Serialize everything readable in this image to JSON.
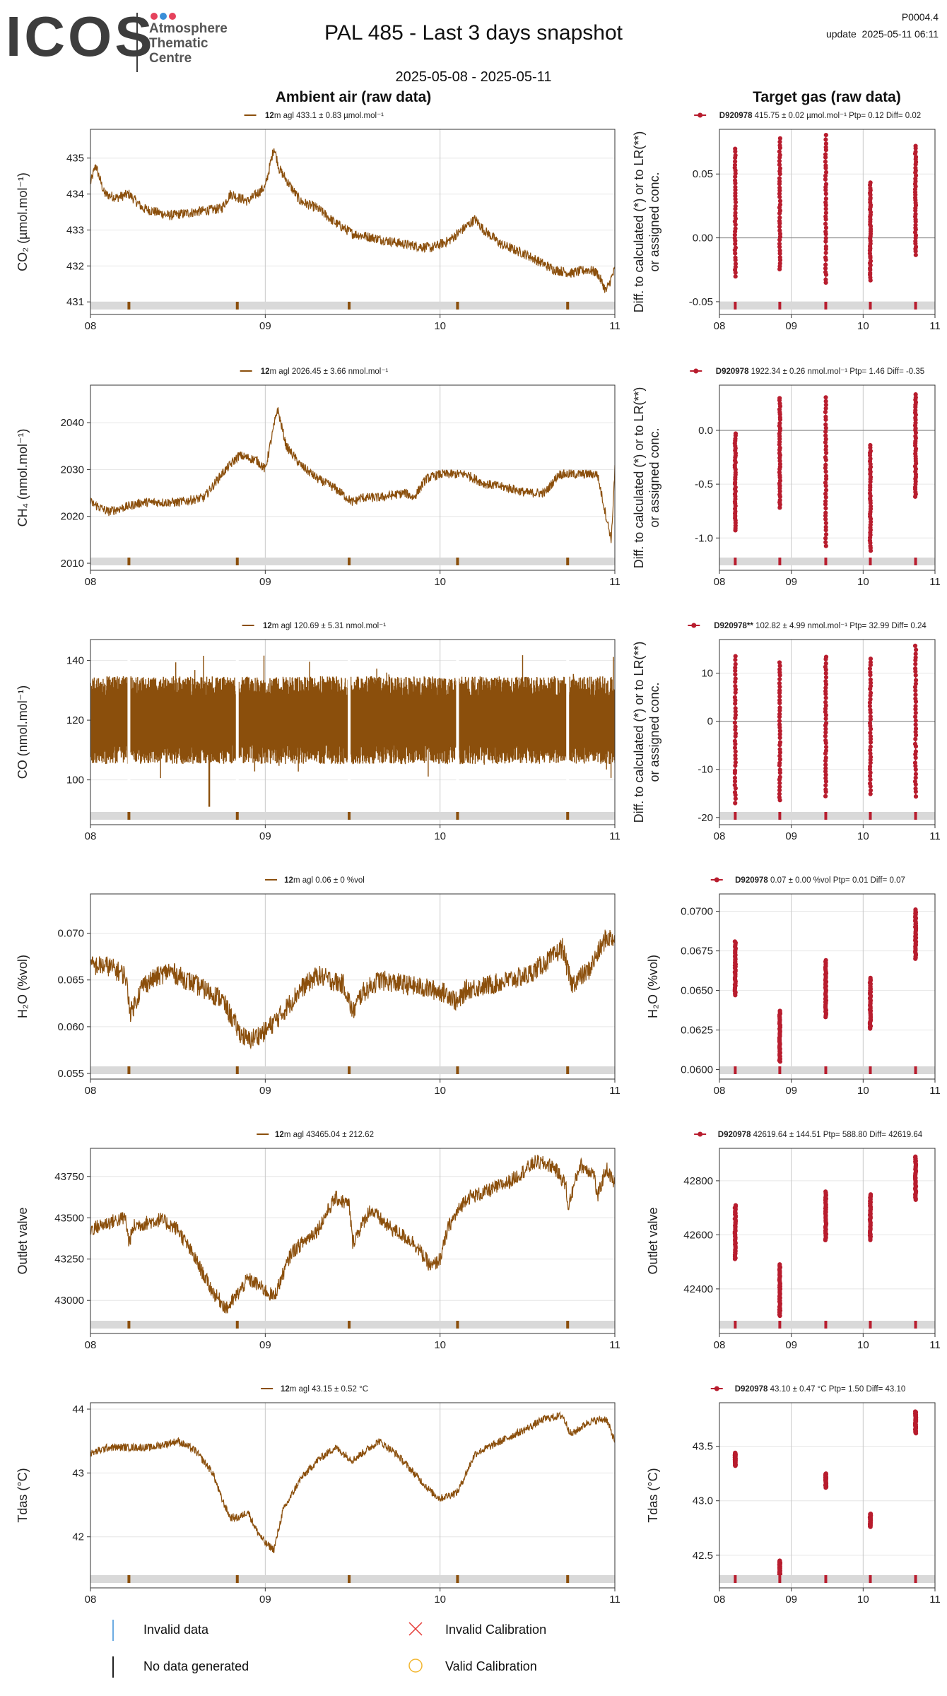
{
  "header": {
    "logo": {
      "text": "ICOS",
      "line1": "Atmosphere",
      "line2": "Thematic",
      "line3": "Centre",
      "dot_colors": [
        "#e5425c",
        "#3a8fd8",
        "#e5425c"
      ]
    },
    "title": "PAL 485 - Last 3 days snapshot",
    "date_range": "2025-05-08 - 2025-05-11",
    "station_code": "P0004.4",
    "update": "update  2025-05-11 06:11",
    "ambient_header": "Ambient air (raw data)",
    "target_header": "Target gas (raw data)"
  },
  "colors": {
    "ambient": "#8b4f0c",
    "target": "#b81d2e",
    "flag_band": "#d9d9d9",
    "grid": "#e6e6e6",
    "day_line": "#c8c8c8",
    "zero_line": "#8a8a8a"
  },
  "chart_data": [
    {
      "id": "co2-ambient",
      "type": "line",
      "legend_bold": "12",
      "legend_rest": "m agl 433.1 ± 0.83 µmol.mol⁻¹",
      "ylabel": "CO₂ (µmol.mol⁻¹)",
      "x_ticks": [
        "08",
        "09",
        "10",
        "11"
      ],
      "xlim": [
        8,
        11
      ],
      "ylim": [
        430.65,
        435.8
      ],
      "y_ticks": [
        431,
        432,
        433,
        434,
        435
      ],
      "flags_x": [
        8.22,
        8.84,
        9.48,
        10.1,
        10.73
      ],
      "series": [
        {
          "x": [
            8,
            8.03,
            8.08,
            8.15,
            8.22,
            8.3,
            8.45,
            8.6,
            8.75,
            8.8,
            8.9,
            9.0,
            9.05,
            9.08,
            9.12,
            9.2,
            9.3,
            9.4,
            9.5,
            9.6,
            9.8,
            9.95,
            10.05,
            10.15,
            10.2,
            10.25,
            10.35,
            10.5,
            10.65,
            10.75,
            10.85,
            10.9,
            10.95,
            11.0
          ],
          "y": [
            434.3,
            434.8,
            434.0,
            433.9,
            434.0,
            433.6,
            433.4,
            433.5,
            433.6,
            434.0,
            433.8,
            434.2,
            435.3,
            434.7,
            434.4,
            433.8,
            433.6,
            433.2,
            432.9,
            432.8,
            432.6,
            432.5,
            432.7,
            433.1,
            433.3,
            433.0,
            432.6,
            432.3,
            431.9,
            431.8,
            431.9,
            431.8,
            431.3,
            431.9
          ],
          "noise": 0.14
        }
      ]
    },
    {
      "id": "co2-target",
      "type": "scatter",
      "legend_bold": "D920978",
      "legend_rest": " 415.75 ± 0.02 µmol.mol⁻¹ Ptp= 0.12 Diff= 0.02",
      "ylabel": "Diff. to calculated (*) or to LR(**) or assigned conc.",
      "x_ticks": [
        "08",
        "09",
        "10",
        "11"
      ],
      "xlim": [
        8,
        11
      ],
      "ylim": [
        -0.06,
        0.085
      ],
      "y_ticks": [
        -0.05,
        0.0,
        0.05
      ],
      "y_tick_labels": [
        "-0.05",
        "0.00",
        "0.05"
      ],
      "zero_line": true,
      "flags_x": [
        8.22,
        8.84,
        9.48,
        10.1,
        10.73
      ],
      "points": [
        {
          "x": 8.22,
          "min": -0.03,
          "max": 0.07
        },
        {
          "x": 8.84,
          "min": -0.025,
          "max": 0.078
        },
        {
          "x": 9.48,
          "min": -0.035,
          "max": 0.08
        },
        {
          "x": 10.1,
          "min": -0.033,
          "max": 0.043
        },
        {
          "x": 10.73,
          "min": -0.013,
          "max": 0.072
        }
      ]
    },
    {
      "id": "ch4-ambient",
      "type": "line",
      "legend_bold": "12",
      "legend_rest": "m agl 2026.45 ± 3.66 nmol.mol⁻¹",
      "ylabel": "CH₄ (nmol.mol⁻¹)",
      "x_ticks": [
        "08",
        "09",
        "10",
        "11"
      ],
      "xlim": [
        8,
        11
      ],
      "ylim": [
        2008.5,
        2048
      ],
      "y_ticks": [
        2010,
        2020,
        2030,
        2040
      ],
      "flags_x": [
        8.22,
        8.84,
        9.48,
        10.1,
        10.73
      ],
      "series": [
        {
          "x": [
            8,
            8.05,
            8.1,
            8.2,
            8.3,
            8.5,
            8.65,
            8.75,
            8.85,
            8.95,
            9.0,
            9.07,
            9.12,
            9.2,
            9.3,
            9.4,
            9.5,
            9.55,
            9.65,
            9.8,
            9.85,
            9.92,
            10.0,
            10.1,
            10.15,
            10.25,
            10.4,
            10.5,
            10.6,
            10.68,
            10.75,
            10.85,
            10.9,
            10.95,
            10.98,
            11.0
          ],
          "y": [
            2023,
            2022,
            2021,
            2022,
            2023,
            2023,
            2024,
            2029,
            2033,
            2032,
            2030,
            2043,
            2035,
            2031,
            2028,
            2026,
            2023,
            2024,
            2024,
            2025,
            2024,
            2028,
            2029,
            2029,
            2029,
            2027,
            2026,
            2025,
            2025,
            2029,
            2029,
            2029,
            2029,
            2020,
            2015,
            2030
          ],
          "noise": 1.0
        }
      ]
    },
    {
      "id": "ch4-target",
      "type": "scatter",
      "legend_bold": "D920978",
      "legend_rest": " 1922.34 ± 0.26 nmol.mol⁻¹ Ptp= 1.46 Diff= -0.35",
      "ylabel": "Diff. to calculated (*) or to LR(**) or assigned conc.",
      "x_ticks": [
        "08",
        "09",
        "10",
        "11"
      ],
      "xlim": [
        8,
        11
      ],
      "ylim": [
        -1.3,
        0.42
      ],
      "y_ticks": [
        -1.0,
        -0.5,
        0.0
      ],
      "y_tick_labels": [
        "-1.0",
        "-0.5",
        "0.0"
      ],
      "zero_line": true,
      "flags_x": [
        8.22,
        8.84,
        9.48,
        10.1,
        10.73
      ],
      "points": [
        {
          "x": 8.22,
          "min": -0.93,
          "max": -0.03
        },
        {
          "x": 8.84,
          "min": -0.72,
          "max": 0.3
        },
        {
          "x": 9.48,
          "min": -1.07,
          "max": 0.3
        },
        {
          "x": 10.1,
          "min": -1.12,
          "max": -0.14
        },
        {
          "x": 10.73,
          "min": -0.62,
          "max": 0.33
        }
      ]
    },
    {
      "id": "co-ambient",
      "type": "band",
      "legend_bold": "12",
      "legend_rest": "m agl 120.69 ± 5.31 nmol.mol⁻¹",
      "ylabel": "CO (nmol.mol⁻¹)",
      "x_ticks": [
        "08",
        "09",
        "10",
        "11"
      ],
      "xlim": [
        8,
        11
      ],
      "ylim": [
        85,
        147
      ],
      "y_ticks": [
        100,
        120,
        140
      ],
      "flags_x": [
        8.22,
        8.84,
        9.48,
        10.1,
        10.73
      ],
      "band": {
        "center": 120,
        "half_width": 10.5,
        "spike": 22,
        "low_dip": [
          8.68,
          91
        ]
      }
    },
    {
      "id": "co-target",
      "type": "scatter",
      "legend_bold": "D920978**",
      "legend_rest": " 102.82 ± 4.99 nmol.mol⁻¹ Ptp= 32.99 Diff= 0.24",
      "ylabel": "Diff. to calculated (*) or to LR(**) or assigned conc.",
      "x_ticks": [
        "08",
        "09",
        "10",
        "11"
      ],
      "xlim": [
        8,
        11
      ],
      "ylim": [
        -21.5,
        17
      ],
      "y_ticks": [
        -20,
        -10,
        0,
        10
      ],
      "y_tick_labels": [
        "-20",
        "-10",
        "0",
        "10"
      ],
      "zero_line": true,
      "flags_x": [
        8.22,
        8.84,
        9.48,
        10.1,
        10.73
      ],
      "points": [
        {
          "x": 8.22,
          "min": -17,
          "max": 13.5
        },
        {
          "x": 8.84,
          "min": -16.5,
          "max": 12.3
        },
        {
          "x": 9.48,
          "min": -15.5,
          "max": 13.5
        },
        {
          "x": 10.1,
          "min": -15,
          "max": 13
        },
        {
          "x": 10.73,
          "min": -15.5,
          "max": 15.7
        }
      ]
    },
    {
      "id": "h2o-ambient",
      "type": "line",
      "legend_bold": "12",
      "legend_rest": "m agl 0.06 ± 0 %vol",
      "ylabel": "H₂O (%vol)",
      "x_ticks": [
        "08",
        "09",
        "10",
        "11"
      ],
      "xlim": [
        8,
        11
      ],
      "ylim": [
        0.0544,
        0.0742
      ],
      "y_ticks": [
        0.055,
        0.06,
        0.065,
        0.07
      ],
      "y_tick_labels": [
        "0.055",
        "0.060",
        "0.065",
        "0.070"
      ],
      "flags_x": [
        8.22,
        8.84,
        9.48,
        10.1,
        10.73
      ],
      "series": [
        {
          "x": [
            8,
            8.1,
            8.2,
            8.23,
            8.3,
            8.45,
            8.6,
            8.75,
            8.85,
            8.9,
            9.0,
            9.1,
            9.2,
            9.3,
            9.4,
            9.45,
            9.5,
            9.55,
            9.65,
            9.8,
            9.95,
            10.05,
            10.1,
            10.15,
            10.3,
            10.5,
            10.65,
            10.7,
            10.75,
            10.85,
            10.95,
            11.0
          ],
          "y": [
            0.0665,
            0.0665,
            0.0655,
            0.0615,
            0.0645,
            0.066,
            0.0645,
            0.063,
            0.0595,
            0.0585,
            0.0595,
            0.0615,
            0.064,
            0.0655,
            0.0648,
            0.0645,
            0.0615,
            0.0635,
            0.065,
            0.0645,
            0.064,
            0.0635,
            0.0625,
            0.064,
            0.0645,
            0.0655,
            0.0675,
            0.0685,
            0.0645,
            0.066,
            0.0695,
            0.0695
          ],
          "noise": 0.0011
        }
      ]
    },
    {
      "id": "h2o-target",
      "type": "scatter",
      "legend_bold": "D920978",
      "legend_rest": " 0.07 ± 0.00 %vol Ptp= 0.01 Diff= 0.07",
      "ylabel": "H₂O (%vol)",
      "x_ticks": [
        "08",
        "09",
        "10",
        "11"
      ],
      "xlim": [
        8,
        11
      ],
      "ylim": [
        0.0594,
        0.0711
      ],
      "y_ticks": [
        0.06,
        0.0625,
        0.065,
        0.0675,
        0.07
      ],
      "y_tick_labels": [
        "0.0600",
        "0.0625",
        "0.0650",
        "0.0675",
        "0.0700"
      ],
      "zero_line": false,
      "flags_x": [
        8.22,
        8.84,
        9.48,
        10.1,
        10.73
      ],
      "points": [
        {
          "x": 8.22,
          "min": 0.0647,
          "max": 0.0681
        },
        {
          "x": 8.84,
          "min": 0.0605,
          "max": 0.0637
        },
        {
          "x": 9.48,
          "min": 0.0633,
          "max": 0.0669
        },
        {
          "x": 10.1,
          "min": 0.0626,
          "max": 0.0658
        },
        {
          "x": 10.73,
          "min": 0.067,
          "max": 0.0701
        }
      ]
    },
    {
      "id": "outlet-ambient",
      "type": "line",
      "legend_bold": "12",
      "legend_rest": "m agl 43465.04 ± 212.62",
      "ylabel": "Outlet valve",
      "x_ticks": [
        "08",
        "09",
        "10",
        "11"
      ],
      "xlim": [
        8,
        11
      ],
      "ylim": [
        42800,
        43920
      ],
      "y_ticks": [
        43000,
        43250,
        43500,
        43750
      ],
      "flags_x": [
        8.22,
        8.84,
        9.48,
        10.1,
        10.73
      ],
      "series": [
        {
          "x": [
            8,
            8.1,
            8.2,
            8.22,
            8.25,
            8.4,
            8.5,
            8.6,
            8.7,
            8.78,
            8.85,
            8.9,
            8.95,
            9.05,
            9.15,
            9.3,
            9.4,
            9.48,
            9.5,
            9.6,
            9.7,
            9.85,
            9.95,
            10.0,
            10.05,
            10.15,
            10.25,
            10.4,
            10.55,
            10.65,
            10.72,
            10.73,
            10.8,
            10.88,
            10.9,
            10.95,
            11.0
          ],
          "y": [
            43430,
            43470,
            43500,
            43350,
            43450,
            43490,
            43430,
            43250,
            43050,
            42950,
            43050,
            43130,
            43100,
            43020,
            43290,
            43430,
            43620,
            43580,
            43350,
            43550,
            43450,
            43350,
            43200,
            43250,
            43450,
            43620,
            43650,
            43720,
            43840,
            43810,
            43700,
            43560,
            43820,
            43770,
            43620,
            43800,
            43700
          ],
          "noise": 45
        }
      ]
    },
    {
      "id": "outlet-target",
      "type": "scatter",
      "legend_bold": "D920978",
      "legend_rest": " 42619.64 ± 144.51  Ptp= 588.80 Diff= 42619.64",
      "ylabel": "Outlet valve",
      "x_ticks": [
        "08",
        "09",
        "10",
        "11"
      ],
      "xlim": [
        8,
        11
      ],
      "ylim": [
        42235,
        42920
      ],
      "y_ticks": [
        42400,
        42600,
        42800
      ],
      "zero_line": false,
      "flags_x": [
        8.22,
        8.84,
        9.48,
        10.1,
        10.73
      ],
      "points": [
        {
          "x": 8.22,
          "min": 42510,
          "max": 42710
        },
        {
          "x": 8.84,
          "min": 42300,
          "max": 42490
        },
        {
          "x": 9.48,
          "min": 42580,
          "max": 42760
        },
        {
          "x": 10.1,
          "min": 42580,
          "max": 42750
        },
        {
          "x": 10.73,
          "min": 42730,
          "max": 42890
        }
      ]
    },
    {
      "id": "tdas-ambient",
      "type": "line",
      "legend_bold": "12",
      "legend_rest": "m agl 43.15 ± 0.52 °C",
      "ylabel": "Tdas (°C)",
      "x_ticks": [
        "08",
        "09",
        "10",
        "11"
      ],
      "xlim": [
        8,
        11
      ],
      "ylim": [
        41.2,
        44.1
      ],
      "y_ticks": [
        42,
        43,
        44
      ],
      "flags_x": [
        8.22,
        8.84,
        9.48,
        10.1,
        10.73
      ],
      "series": [
        {
          "x": [
            8,
            8.1,
            8.2,
            8.35,
            8.5,
            8.6,
            8.7,
            8.75,
            8.8,
            8.85,
            8.9,
            8.95,
            9.0,
            9.05,
            9.1,
            9.2,
            9.3,
            9.4,
            9.5,
            9.55,
            9.65,
            9.75,
            9.85,
            9.95,
            10.0,
            10.1,
            10.2,
            10.35,
            10.5,
            10.6,
            10.7,
            10.75,
            10.85,
            10.95,
            11.0
          ],
          "y": [
            43.3,
            43.4,
            43.4,
            43.4,
            43.5,
            43.35,
            43.0,
            42.6,
            42.3,
            42.3,
            42.4,
            42.1,
            41.9,
            41.8,
            42.4,
            42.9,
            43.2,
            43.4,
            43.2,
            43.3,
            43.5,
            43.3,
            43.0,
            42.7,
            42.6,
            42.7,
            43.3,
            43.5,
            43.7,
            43.85,
            43.9,
            43.6,
            43.8,
            43.85,
            43.5
          ],
          "noise": 0.06
        }
      ]
    },
    {
      "id": "tdas-target",
      "type": "scatter",
      "legend_bold": "D920978",
      "legend_rest": " 43.10 ± 0.47 °C Ptp= 1.50 Diff= 43.10",
      "ylabel": "Tdas (°C)",
      "x_ticks": [
        "08",
        "09",
        "10",
        "11"
      ],
      "xlim": [
        8,
        11
      ],
      "ylim": [
        42.2,
        43.9
      ],
      "y_ticks": [
        42.5,
        43.0,
        43.5
      ],
      "y_tick_labels": [
        "42.5",
        "43.0",
        "43.5"
      ],
      "zero_line": false,
      "flags_x": [
        8.22,
        8.84,
        9.48,
        10.1,
        10.73
      ],
      "points": [
        {
          "x": 8.22,
          "min": 43.32,
          "max": 43.44
        },
        {
          "x": 8.84,
          "min": 42.32,
          "max": 42.45
        },
        {
          "x": 9.48,
          "min": 43.12,
          "max": 43.25
        },
        {
          "x": 10.1,
          "min": 42.76,
          "max": 42.88
        },
        {
          "x": 10.73,
          "min": 43.62,
          "max": 43.82
        }
      ]
    }
  ],
  "legend": {
    "invalid_data": "Invalid data",
    "no_data": "No data generated",
    "invalid_calibration": "Invalid Calibration",
    "valid_calibration": "Valid Calibration",
    "invalid_data_color": "#3a8fd8",
    "no_data_color": "#222222",
    "invalid_cal_color": "#e53935",
    "valid_cal_color": "#f2b630"
  }
}
